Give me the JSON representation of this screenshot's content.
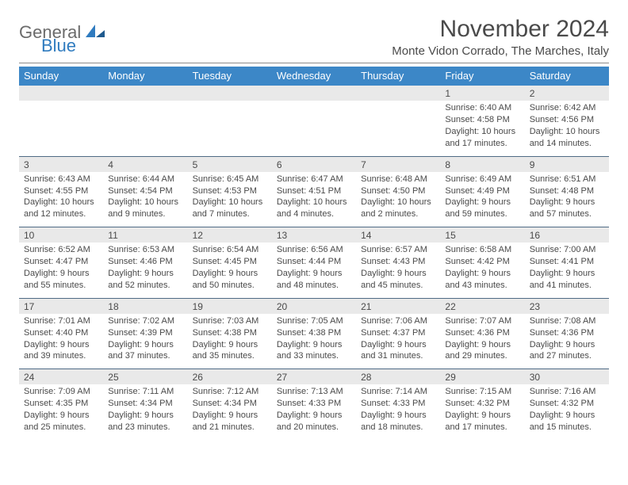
{
  "logo": {
    "general": "General",
    "blue": "Blue"
  },
  "colors": {
    "header_bg": "#3c87c7",
    "header_text": "#ffffff",
    "row_divider": "#4f6b85",
    "daynum_bg": "#e9e9e9",
    "body_text": "#4a4a4a",
    "logo_blue": "#2f7bbf",
    "logo_grey": "#6b6b6b"
  },
  "title": "November 2024",
  "location": "Monte Vidon Corrado, The Marches, Italy",
  "weekday_labels": [
    "Sunday",
    "Monday",
    "Tuesday",
    "Wednesday",
    "Thursday",
    "Friday",
    "Saturday"
  ],
  "weeks": [
    [
      {
        "n": "",
        "sr": "",
        "ss": "",
        "dl1": "",
        "dl2": ""
      },
      {
        "n": "",
        "sr": "",
        "ss": "",
        "dl1": "",
        "dl2": ""
      },
      {
        "n": "",
        "sr": "",
        "ss": "",
        "dl1": "",
        "dl2": ""
      },
      {
        "n": "",
        "sr": "",
        "ss": "",
        "dl1": "",
        "dl2": ""
      },
      {
        "n": "",
        "sr": "",
        "ss": "",
        "dl1": "",
        "dl2": ""
      },
      {
        "n": "1",
        "sr": "Sunrise: 6:40 AM",
        "ss": "Sunset: 4:58 PM",
        "dl1": "Daylight: 10 hours",
        "dl2": "and 17 minutes."
      },
      {
        "n": "2",
        "sr": "Sunrise: 6:42 AM",
        "ss": "Sunset: 4:56 PM",
        "dl1": "Daylight: 10 hours",
        "dl2": "and 14 minutes."
      }
    ],
    [
      {
        "n": "3",
        "sr": "Sunrise: 6:43 AM",
        "ss": "Sunset: 4:55 PM",
        "dl1": "Daylight: 10 hours",
        "dl2": "and 12 minutes."
      },
      {
        "n": "4",
        "sr": "Sunrise: 6:44 AM",
        "ss": "Sunset: 4:54 PM",
        "dl1": "Daylight: 10 hours",
        "dl2": "and 9 minutes."
      },
      {
        "n": "5",
        "sr": "Sunrise: 6:45 AM",
        "ss": "Sunset: 4:53 PM",
        "dl1": "Daylight: 10 hours",
        "dl2": "and 7 minutes."
      },
      {
        "n": "6",
        "sr": "Sunrise: 6:47 AM",
        "ss": "Sunset: 4:51 PM",
        "dl1": "Daylight: 10 hours",
        "dl2": "and 4 minutes."
      },
      {
        "n": "7",
        "sr": "Sunrise: 6:48 AM",
        "ss": "Sunset: 4:50 PM",
        "dl1": "Daylight: 10 hours",
        "dl2": "and 2 minutes."
      },
      {
        "n": "8",
        "sr": "Sunrise: 6:49 AM",
        "ss": "Sunset: 4:49 PM",
        "dl1": "Daylight: 9 hours",
        "dl2": "and 59 minutes."
      },
      {
        "n": "9",
        "sr": "Sunrise: 6:51 AM",
        "ss": "Sunset: 4:48 PM",
        "dl1": "Daylight: 9 hours",
        "dl2": "and 57 minutes."
      }
    ],
    [
      {
        "n": "10",
        "sr": "Sunrise: 6:52 AM",
        "ss": "Sunset: 4:47 PM",
        "dl1": "Daylight: 9 hours",
        "dl2": "and 55 minutes."
      },
      {
        "n": "11",
        "sr": "Sunrise: 6:53 AM",
        "ss": "Sunset: 4:46 PM",
        "dl1": "Daylight: 9 hours",
        "dl2": "and 52 minutes."
      },
      {
        "n": "12",
        "sr": "Sunrise: 6:54 AM",
        "ss": "Sunset: 4:45 PM",
        "dl1": "Daylight: 9 hours",
        "dl2": "and 50 minutes."
      },
      {
        "n": "13",
        "sr": "Sunrise: 6:56 AM",
        "ss": "Sunset: 4:44 PM",
        "dl1": "Daylight: 9 hours",
        "dl2": "and 48 minutes."
      },
      {
        "n": "14",
        "sr": "Sunrise: 6:57 AM",
        "ss": "Sunset: 4:43 PM",
        "dl1": "Daylight: 9 hours",
        "dl2": "and 45 minutes."
      },
      {
        "n": "15",
        "sr": "Sunrise: 6:58 AM",
        "ss": "Sunset: 4:42 PM",
        "dl1": "Daylight: 9 hours",
        "dl2": "and 43 minutes."
      },
      {
        "n": "16",
        "sr": "Sunrise: 7:00 AM",
        "ss": "Sunset: 4:41 PM",
        "dl1": "Daylight: 9 hours",
        "dl2": "and 41 minutes."
      }
    ],
    [
      {
        "n": "17",
        "sr": "Sunrise: 7:01 AM",
        "ss": "Sunset: 4:40 PM",
        "dl1": "Daylight: 9 hours",
        "dl2": "and 39 minutes."
      },
      {
        "n": "18",
        "sr": "Sunrise: 7:02 AM",
        "ss": "Sunset: 4:39 PM",
        "dl1": "Daylight: 9 hours",
        "dl2": "and 37 minutes."
      },
      {
        "n": "19",
        "sr": "Sunrise: 7:03 AM",
        "ss": "Sunset: 4:38 PM",
        "dl1": "Daylight: 9 hours",
        "dl2": "and 35 minutes."
      },
      {
        "n": "20",
        "sr": "Sunrise: 7:05 AM",
        "ss": "Sunset: 4:38 PM",
        "dl1": "Daylight: 9 hours",
        "dl2": "and 33 minutes."
      },
      {
        "n": "21",
        "sr": "Sunrise: 7:06 AM",
        "ss": "Sunset: 4:37 PM",
        "dl1": "Daylight: 9 hours",
        "dl2": "and 31 minutes."
      },
      {
        "n": "22",
        "sr": "Sunrise: 7:07 AM",
        "ss": "Sunset: 4:36 PM",
        "dl1": "Daylight: 9 hours",
        "dl2": "and 29 minutes."
      },
      {
        "n": "23",
        "sr": "Sunrise: 7:08 AM",
        "ss": "Sunset: 4:36 PM",
        "dl1": "Daylight: 9 hours",
        "dl2": "and 27 minutes."
      }
    ],
    [
      {
        "n": "24",
        "sr": "Sunrise: 7:09 AM",
        "ss": "Sunset: 4:35 PM",
        "dl1": "Daylight: 9 hours",
        "dl2": "and 25 minutes."
      },
      {
        "n": "25",
        "sr": "Sunrise: 7:11 AM",
        "ss": "Sunset: 4:34 PM",
        "dl1": "Daylight: 9 hours",
        "dl2": "and 23 minutes."
      },
      {
        "n": "26",
        "sr": "Sunrise: 7:12 AM",
        "ss": "Sunset: 4:34 PM",
        "dl1": "Daylight: 9 hours",
        "dl2": "and 21 minutes."
      },
      {
        "n": "27",
        "sr": "Sunrise: 7:13 AM",
        "ss": "Sunset: 4:33 PM",
        "dl1": "Daylight: 9 hours",
        "dl2": "and 20 minutes."
      },
      {
        "n": "28",
        "sr": "Sunrise: 7:14 AM",
        "ss": "Sunset: 4:33 PM",
        "dl1": "Daylight: 9 hours",
        "dl2": "and 18 minutes."
      },
      {
        "n": "29",
        "sr": "Sunrise: 7:15 AM",
        "ss": "Sunset: 4:32 PM",
        "dl1": "Daylight: 9 hours",
        "dl2": "and 17 minutes."
      },
      {
        "n": "30",
        "sr": "Sunrise: 7:16 AM",
        "ss": "Sunset: 4:32 PM",
        "dl1": "Daylight: 9 hours",
        "dl2": "and 15 minutes."
      }
    ]
  ]
}
